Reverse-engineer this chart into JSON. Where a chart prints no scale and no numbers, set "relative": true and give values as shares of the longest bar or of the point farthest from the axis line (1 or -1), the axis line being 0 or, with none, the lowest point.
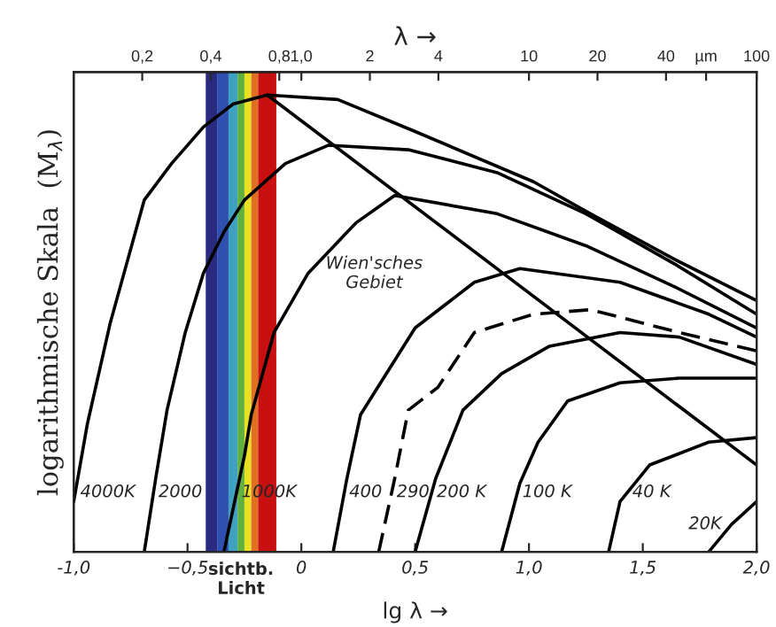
{
  "chart_data": {
    "type": "line",
    "relative": true,
    "xlabel": "lg λ →",
    "x2label": "λ →",
    "ylabel": "logarithmische Skala  (M$_{λ}$)",
    "xlim": [
      -1.0,
      2.0
    ],
    "xticks": [
      {
        "value": -1.0,
        "label": "-1,0"
      },
      {
        "value": -0.5,
        "label": "−0,5"
      },
      0,
      {
        "value": 0.5,
        "label": "0,5"
      },
      {
        "value": 1.0,
        "label": "1,0"
      },
      {
        "value": 1.5,
        "label": "1,5"
      },
      {
        "value": 2.0,
        "label": "2,0"
      }
    ],
    "x2lim": [
      0.1,
      100
    ],
    "log": "x2",
    "x2ticks": [
      {
        "value": 0.2,
        "label": "0,2"
      },
      {
        "value": 0.4,
        "label": "0,4"
      },
      {
        "value": 0.8,
        "label": "0,8"
      },
      {
        "value": 1.0,
        "label": "1,0"
      },
      2,
      4,
      10,
      20,
      40,
      {
        "value": 60,
        "label": "µm"
      },
      100
    ],
    "tick_labels": "x",
    "grid": false,
    "legend": false,
    "marker": "none",
    "series": [
      {
        "name": "4000K",
        "color": "#000000",
        "x": [
          -1.0,
          -0.94,
          -0.84,
          -0.69,
          -0.57,
          -0.43,
          -0.3,
          -0.15,
          0.16,
          0.5,
          1.02,
          1.27,
          1.64,
          2.0
        ],
        "values": [
          0.11,
          0.28,
          0.5,
          0.77,
          0.85,
          0.93,
          0.98,
          1.0,
          0.99,
          0.92,
          0.81,
          0.74,
          0.64,
          0.55
        ]
      },
      {
        "name": "2000",
        "color": "#000000",
        "x": [
          -0.69,
          -0.64,
          -0.59,
          -0.51,
          -0.43,
          -0.34,
          -0.25,
          -0.07,
          0.12,
          0.47,
          0.86,
          1.25,
          1.64,
          2.0
        ],
        "values": [
          0,
          0.16,
          0.31,
          0.48,
          0.61,
          0.7,
          0.77,
          0.85,
          0.89,
          0.88,
          0.83,
          0.74,
          0.63,
          0.52
        ]
      },
      {
        "name": "1000K",
        "color": "#000000",
        "x": [
          -0.34,
          -0.25,
          -0.22,
          -0.12,
          0.03,
          0.24,
          0.41,
          0.86,
          1.25,
          1.64,
          2.0
        ],
        "values": [
          0,
          0.21,
          0.3,
          0.48,
          0.61,
          0.72,
          0.78,
          0.74,
          0.67,
          0.58,
          0.49
        ]
      },
      {
        "name": "400",
        "color": "#000000",
        "x": [
          0.14,
          0.2,
          0.26,
          0.5,
          0.76,
          0.96,
          1.4,
          1.79,
          2.0
        ],
        "values": [
          0,
          0.16,
          0.3,
          0.49,
          0.59,
          0.62,
          0.59,
          0.52,
          0.47
        ]
      },
      {
        "name": "290",
        "color": "#000000",
        "line_style": "dashed",
        "x": [
          0.34,
          0.41,
          0.47,
          0.6,
          0.76,
          1.02,
          1.27,
          1.66,
          2.0
        ],
        "values": [
          0,
          0.16,
          0.31,
          0.36,
          0.48,
          0.52,
          0.53,
          0.48,
          0.44
        ]
      },
      {
        "name": "200 K",
        "color": "#000000",
        "x": [
          0.5,
          0.59,
          0.71,
          0.88,
          1.09,
          1.4,
          1.66,
          2.0
        ],
        "values": [
          0,
          0.16,
          0.31,
          0.39,
          0.45,
          0.48,
          0.47,
          0.41
        ]
      },
      {
        "name": "100 K",
        "color": "#000000",
        "x": [
          0.88,
          0.96,
          1.04,
          1.17,
          1.4,
          1.66,
          2.0
        ],
        "values": [
          0,
          0.15,
          0.24,
          0.33,
          0.37,
          0.38,
          0.38
        ]
      },
      {
        "name": "40 K",
        "color": "#000000",
        "x": [
          1.35,
          1.4,
          1.53,
          1.79,
          2.0
        ],
        "values": [
          0,
          0.11,
          0.19,
          0.24,
          0.25
        ]
      },
      {
        "name": "20K",
        "color": "#000000",
        "x": [
          1.79,
          1.89,
          2.0
        ],
        "values": [
          0,
          0.06,
          0.11
        ]
      },
      {
        "color": "#000000",
        "x": [
          -0.15,
          2.0
        ],
        "values": [
          1.0,
          0.19
        ]
      }
    ],
    "bands": [
      {
        "axis": "x",
        "from": -0.42,
        "to": -0.37,
        "color": "#2a2a80"
      },
      {
        "axis": "x",
        "from": -0.37,
        "to": -0.32,
        "color": "#3050b0"
      },
      {
        "axis": "x",
        "from": -0.32,
        "to": -0.28,
        "color": "#40a0c0"
      },
      {
        "axis": "x",
        "from": -0.28,
        "to": -0.25,
        "color": "#60b040"
      },
      {
        "axis": "x",
        "from": -0.25,
        "to": -0.22,
        "color": "#e8e020"
      },
      {
        "axis": "x",
        "from": -0.22,
        "to": -0.19,
        "color": "#e07020"
      },
      {
        "axis": "x",
        "from": -0.19,
        "to": -0.11,
        "color": "#c81010",
        "label": "sichtb.\nLicht"
      }
    ],
    "annotations": [
      "Wien'sches\nGebiet"
    ]
  }
}
